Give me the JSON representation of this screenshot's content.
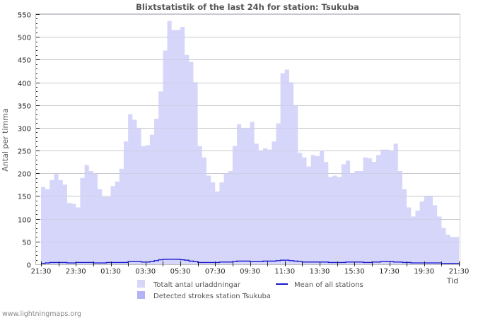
{
  "chart_data": {
    "type": "area",
    "title": "Blixtstatistik of the last 24h for station: Tsukuba",
    "xlabel": "Tid",
    "ylabel": "Antal per timma",
    "ylim": [
      0,
      550
    ],
    "yticks": [
      0,
      50,
      100,
      150,
      200,
      250,
      300,
      350,
      400,
      450,
      500,
      550
    ],
    "xtick_labels": [
      "21:30",
      "23:30",
      "01:30",
      "03:30",
      "05:30",
      "07:30",
      "09:30",
      "11:30",
      "13:30",
      "15:30",
      "17:30",
      "19:30",
      "21:30"
    ],
    "grid": true,
    "legend_position": "bottom",
    "x_hours": [
      0,
      0.25,
      0.5,
      0.75,
      1,
      1.25,
      1.5,
      1.75,
      2,
      2.25,
      2.5,
      2.75,
      3,
      3.25,
      3.5,
      3.75,
      4,
      4.25,
      4.5,
      4.75,
      5,
      5.25,
      5.5,
      5.75,
      6,
      6.25,
      6.5,
      6.75,
      7,
      7.25,
      7.5,
      7.75,
      8,
      8.25,
      8.5,
      8.75,
      9,
      9.25,
      9.5,
      9.75,
      10,
      10.25,
      10.5,
      10.75,
      11,
      11.25,
      11.5,
      11.75,
      12,
      12.25,
      12.5,
      12.75,
      13,
      13.25,
      13.5,
      13.75,
      14,
      14.25,
      14.5,
      14.75,
      15,
      15.25,
      15.5,
      15.75,
      16,
      16.25,
      16.5,
      16.75,
      17,
      17.25,
      17.5,
      17.75,
      18,
      18.25,
      18.5,
      18.75,
      19,
      19.25,
      19.5,
      19.75,
      20,
      20.25,
      20.5,
      20.75,
      21,
      21.25,
      21.5,
      21.75,
      22,
      22.25,
      22.5,
      22.75,
      23,
      23.25,
      23.5,
      23.75
    ],
    "series": [
      {
        "name": "Totalt antal urladdningar",
        "type": "area",
        "color": "#d6d6fa",
        "values": [
          170,
          165,
          185,
          200,
          185,
          175,
          135,
          133,
          125,
          190,
          218,
          205,
          200,
          165,
          148,
          148,
          172,
          182,
          210,
          270,
          330,
          318,
          300,
          260,
          262,
          285,
          320,
          380,
          470,
          535,
          515,
          515,
          522,
          460,
          445,
          400,
          260,
          235,
          195,
          180,
          160,
          180,
          200,
          205,
          260,
          308,
          300,
          300,
          313,
          265,
          250,
          255,
          252,
          270,
          310,
          420,
          428,
          400,
          350,
          245,
          235,
          215,
          240,
          238,
          250,
          225,
          192,
          195,
          192,
          220,
          228,
          200,
          205,
          205,
          235,
          233,
          225,
          240,
          252,
          252,
          250,
          265,
          205,
          165,
          125,
          105,
          118,
          138,
          150,
          150,
          130,
          105,
          80,
          65,
          60,
          60
        ]
      },
      {
        "name": "Detected strokes station Tsukuba",
        "type": "area",
        "color": "#b4b4f5",
        "values": [
          0,
          0,
          0,
          0,
          0,
          0,
          0,
          0,
          0,
          0,
          0,
          0,
          0,
          0,
          0,
          0,
          0,
          0,
          0,
          0,
          0,
          0,
          0,
          0,
          0,
          0,
          0,
          0,
          0,
          0,
          0,
          0,
          0,
          0,
          0,
          0,
          0,
          0,
          0,
          0,
          0,
          0,
          0,
          0,
          0,
          0,
          0,
          0,
          0,
          0,
          0,
          0,
          0,
          0,
          0,
          0,
          0,
          0,
          0,
          0,
          0,
          0,
          0,
          0,
          0,
          0,
          0,
          0,
          0,
          0,
          0,
          0,
          0,
          0,
          0,
          0,
          0,
          0,
          0,
          0,
          0,
          0,
          0,
          0,
          0,
          0,
          0,
          0,
          0,
          0,
          0,
          0,
          0,
          0,
          0,
          0
        ]
      },
      {
        "name": "Mean of all stations",
        "type": "line",
        "color": "#1a1acc",
        "values": [
          2,
          3,
          4,
          4,
          4,
          4,
          3,
          3,
          4,
          4,
          4,
          4,
          3,
          3,
          3,
          4,
          4,
          4,
          4,
          4,
          6,
          6,
          6,
          5,
          5,
          6,
          8,
          10,
          11,
          11,
          11,
          11,
          10,
          9,
          7,
          6,
          4,
          4,
          4,
          4,
          4,
          5,
          5,
          5,
          6,
          7,
          7,
          7,
          6,
          6,
          6,
          7,
          7,
          7,
          8,
          9,
          9,
          8,
          7,
          6,
          5,
          5,
          5,
          5,
          5,
          5,
          4,
          4,
          4,
          4,
          5,
          5,
          5,
          5,
          4,
          4,
          5,
          5,
          6,
          6,
          6,
          5,
          5,
          4,
          4,
          3,
          3,
          3,
          3,
          3,
          3,
          3,
          2,
          2,
          2,
          2
        ]
      }
    ]
  },
  "legend": {
    "items": [
      {
        "label": "Totalt antal urladdningar",
        "color": "#d6d6fa",
        "kind": "box"
      },
      {
        "label": "Detected strokes station Tsukuba",
        "color": "#b4b4f5",
        "kind": "box"
      },
      {
        "label": "Mean of all stations",
        "color": "#1a1acc",
        "kind": "line"
      }
    ]
  },
  "watermark": "www.lightningmaps.org"
}
